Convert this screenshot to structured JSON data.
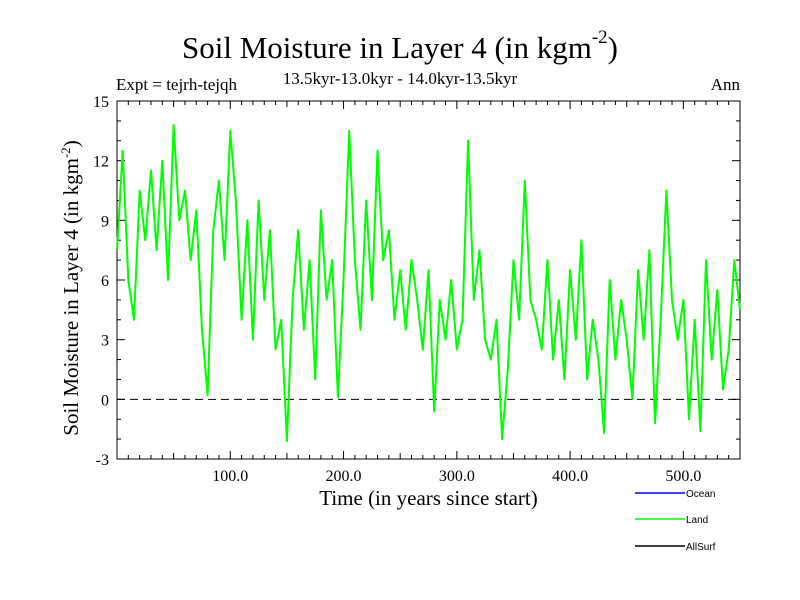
{
  "page": {
    "title": "Soil Moisture in Layer 4 (in kgm",
    "title_sup": "-2",
    "title_close": ")",
    "subtitle": "13.5kyr-13.0kyr - 14.0kyr-13.5kyr",
    "expt_label": "Expt = tejrh-tejqh",
    "season_label": "Ann"
  },
  "chart_data": {
    "type": "line",
    "title": "Soil Moisture in Layer 4 (in kgm-2)",
    "subtitle": "13.5kyr-13.0kyr - 14.0kyr-13.5kyr",
    "xlabel": "Time (in years since start)",
    "ylabel": "Soil Moisture in Layer 4 (in kgm-2)",
    "ylabel_main": "Soil Moisture in Layer 4 (in kgm",
    "ylabel_sup": "-2",
    "ylabel_close": ")",
    "xlim": [
      0,
      550
    ],
    "ylim": [
      -3,
      15
    ],
    "x_ticks": [
      100,
      200,
      300,
      400,
      500
    ],
    "x_tick_labels": [
      "100.0",
      "200.0",
      "300.0",
      "400.0",
      "500.0"
    ],
    "y_ticks": [
      -3,
      0,
      3,
      6,
      9,
      12,
      15
    ],
    "y_tick_labels": [
      "-3",
      "0",
      "3",
      "6",
      "9",
      "12",
      "15"
    ],
    "zero_line": true,
    "colors": {
      "Ocean": "#0000ff",
      "Land": "#00ff00",
      "AllSurf": "#000000"
    },
    "legend": [
      "Ocean",
      "Land",
      "AllSurf"
    ],
    "legend_position": "bottom-right",
    "series": [
      {
        "name": "Land",
        "color": "#00ff00",
        "x": [
          0,
          5,
          10,
          15,
          20,
          25,
          30,
          35,
          40,
          45,
          50,
          55,
          60,
          65,
          70,
          75,
          80,
          85,
          90,
          95,
          100,
          105,
          110,
          115,
          120,
          125,
          130,
          135,
          140,
          145,
          150,
          155,
          160,
          165,
          170,
          175,
          180,
          185,
          190,
          195,
          200,
          205,
          210,
          215,
          220,
          225,
          230,
          235,
          240,
          245,
          250,
          255,
          260,
          265,
          270,
          275,
          280,
          285,
          290,
          295,
          300,
          305,
          310,
          315,
          320,
          325,
          330,
          335,
          340,
          345,
          350,
          355,
          360,
          365,
          370,
          375,
          380,
          385,
          390,
          395,
          400,
          405,
          410,
          415,
          420,
          425,
          430,
          435,
          440,
          445,
          450,
          455,
          460,
          465,
          470,
          475,
          480,
          485,
          490,
          495,
          500,
          505,
          510,
          515,
          520,
          525,
          530,
          535,
          540,
          545,
          550
        ],
        "values": [
          7.5,
          12.5,
          6,
          4,
          10.5,
          8,
          11.5,
          7.5,
          12,
          6,
          13.8,
          9,
          10.5,
          7,
          9.5,
          3.5,
          0.2,
          8.5,
          11,
          7,
          13.5,
          10,
          4,
          9,
          3,
          10,
          5,
          8.5,
          2.5,
          4,
          -2.1,
          5,
          8.5,
          3.5,
          7,
          1,
          9.5,
          5,
          7,
          0.1,
          6,
          13.5,
          7,
          3.5,
          10,
          5,
          12.5,
          7,
          8.5,
          4,
          6.5,
          3.5,
          7,
          5,
          2.5,
          6.5,
          -0.6,
          5,
          3,
          6,
          2.5,
          4,
          13,
          5,
          7.5,
          3,
          2,
          4,
          -2,
          1.5,
          7,
          4,
          11,
          5,
          4,
          2.5,
          7,
          2,
          5,
          1,
          6.5,
          3,
          8,
          1,
          4,
          2,
          -1.7,
          6,
          2,
          5,
          3,
          0,
          6.5,
          3,
          7.5,
          -1.2,
          4,
          10.5,
          5,
          3,
          5,
          -1,
          4,
          -1.6,
          7,
          2,
          5.5,
          0.5,
          2.5,
          7,
          4.5
        ]
      }
    ]
  }
}
